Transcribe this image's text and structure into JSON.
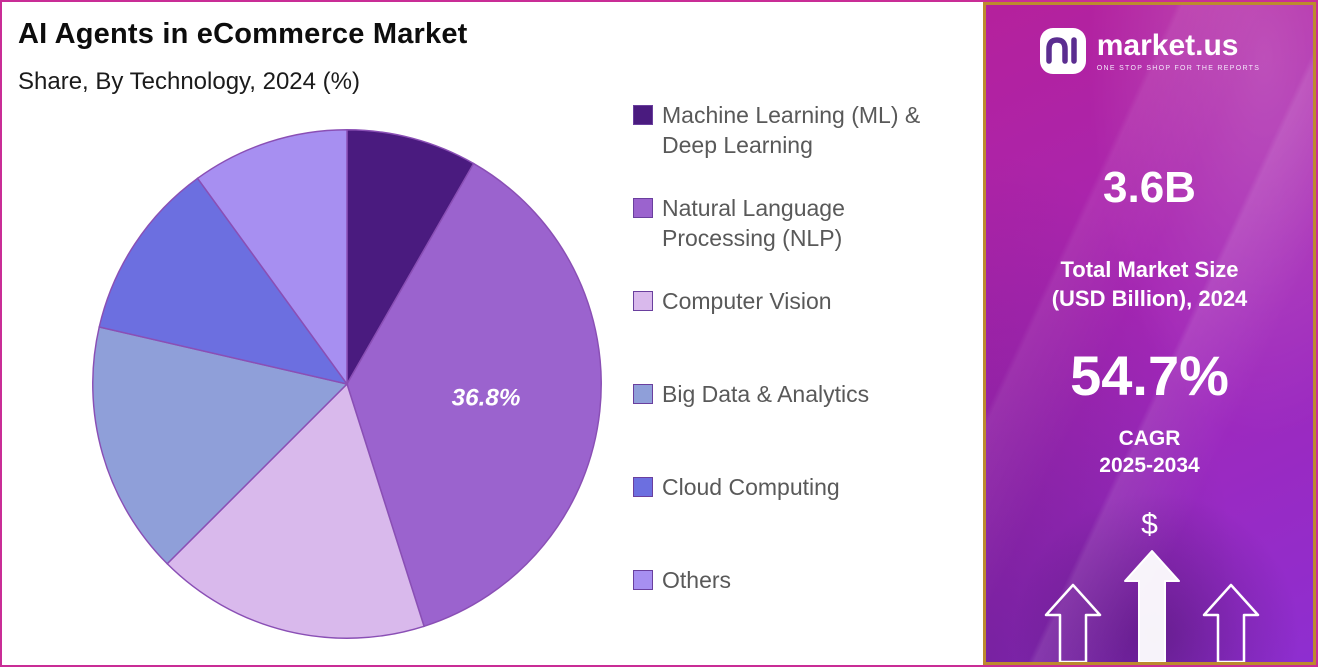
{
  "header": {
    "title": "AI Agents in eCommerce Market",
    "subtitle": "Share, By Technology, 2024 (%)"
  },
  "chart_data": {
    "type": "pie",
    "title": "AI Agents in eCommerce Market",
    "subtitle": "Share, By Technology, 2024 (%)",
    "unit": "%",
    "start_angle_deg": 0,
    "direction": "clockwise",
    "legend_position": "right",
    "slices": [
      {
        "label": "Machine Learning (ML) & Deep Learning",
        "value": 8.3,
        "color": "#4A1B7F",
        "data_label": ""
      },
      {
        "label": "Natural Language Processing (NLP)",
        "value": 36.8,
        "color": "#9B63CE",
        "data_label": "36.8%"
      },
      {
        "label": "Computer Vision",
        "value": 17.4,
        "color": "#D9B9EC",
        "data_label": ""
      },
      {
        "label": "Big Data & Analytics",
        "value": 16.1,
        "color": "#8F9FD9",
        "data_label": ""
      },
      {
        "label": "Cloud Computing",
        "value": 11.4,
        "color": "#6C6FE0",
        "data_label": ""
      },
      {
        "label": "Others",
        "value": 10.0,
        "color": "#A78FF1",
        "data_label": ""
      }
    ],
    "visible_data_labels": [
      "36.8%"
    ]
  },
  "sidebar": {
    "brand_name": "market.us",
    "brand_tagline": "ONE STOP SHOP FOR THE REPORTS",
    "stat1_value": "3.6B",
    "stat1_label_line1": "Total Market Size",
    "stat1_label_line2": "(USD Billion), 2024",
    "stat2_value": "54.7%",
    "stat2_label_line1": "CAGR",
    "stat2_label_line2": "2025-2034",
    "dollar_symbol": "$"
  },
  "colors": {
    "outer_border": "#C92D96",
    "panel_border": "#BD8A2E",
    "panel_gradient_start": "#B5219C",
    "panel_gradient_end": "#8E2ED0",
    "slice_stroke": "#8A4FB5",
    "legend_text": "#595959",
    "data_label_text": "#FFFFFF"
  }
}
